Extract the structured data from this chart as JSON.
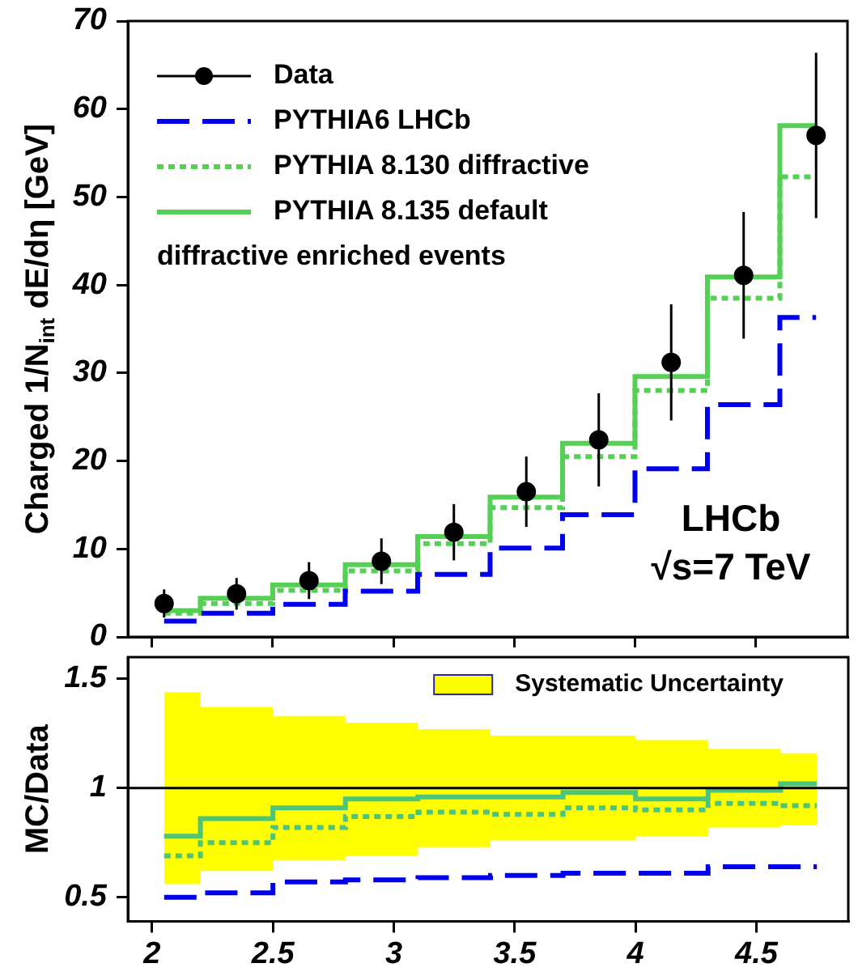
{
  "chart_data": [
    {
      "type": "step",
      "ylabel": "Charged 1/N$_{int}$ dE/dη [GeV]",
      "xlim": [
        1.9,
        4.88
      ],
      "xticks": [
        2,
        2.5,
        3,
        3.5,
        4,
        4.5
      ],
      "ylim": [
        0,
        70
      ],
      "yticks": [
        0,
        10,
        20,
        30,
        40,
        50,
        60,
        70
      ],
      "tick_labels": "y",
      "legend": "top left",
      "grid": false,
      "annotations": [
        "diffractive enriched events",
        "LHCb",
        "√s=7 TeV"
      ],
      "series": [
        {
          "name": "Data",
          "type": "scatter",
          "marker": "circle",
          "color": "#000000",
          "x": [
            2.05,
            2.35,
            2.65,
            2.95,
            3.25,
            3.55,
            3.85,
            4.15,
            4.45,
            4.75
          ],
          "values": [
            3.8,
            4.9,
            6.4,
            8.6,
            11.9,
            16.5,
            22.4,
            31.2,
            41.1,
            57.0
          ],
          "errors": [
            1.6,
            1.8,
            2.1,
            2.6,
            3.2,
            4,
            5.3,
            6.6,
            7.2,
            9.4
          ]
        },
        {
          "name": "PYTHIA6 LHCb",
          "color": "#0000ee",
          "line_style": "dashed",
          "x": [
            2.05,
            2.35,
            2.65,
            2.95,
            3.25,
            3.55,
            3.85,
            4.15,
            4.45,
            4.75
          ],
          "values": [
            1.8,
            2.7,
            3.7,
            5.2,
            7.1,
            10.1,
            13.9,
            19.1,
            26.4,
            36.3
          ]
        },
        {
          "name": "PYTHIA 8.130 diffractive",
          "color": "#55d055",
          "line_style": "dotted",
          "x": [
            2.05,
            2.35,
            2.65,
            2.95,
            3.25,
            3.55,
            3.85,
            4.15,
            4.45,
            4.75
          ],
          "values": [
            2.7,
            3.8,
            5.3,
            7.5,
            10.6,
            14.7,
            20.5,
            28.0,
            38.5,
            52.3
          ]
        },
        {
          "name": "PYTHIA 8.135 default",
          "color": "#55d055",
          "line_style": "solid",
          "x": [
            2.05,
            2.35,
            2.65,
            2.95,
            3.25,
            3.55,
            3.85,
            4.15,
            4.45,
            4.75
          ],
          "values": [
            3.0,
            4.4,
            5.9,
            8.2,
            11.4,
            15.9,
            22.0,
            29.6,
            40.9,
            58.1
          ]
        }
      ]
    },
    {
      "type": "step",
      "ylabel": "MC/Data",
      "xlim": [
        1.9,
        4.88
      ],
      "xticks": [
        2,
        2.5,
        3,
        3.5,
        4,
        4.5
      ],
      "ylim": [
        0.39,
        1.6
      ],
      "yticks": [
        0.5,
        1,
        1.5
      ],
      "legend": "top right",
      "grid": false,
      "ref_lines": [
        {
          "axis": "y",
          "value": 1,
          "color": "#000000"
        }
      ],
      "series": [
        {
          "name": "Systematic Uncertainty",
          "color": "#ffff00",
          "x": [
            2.05,
            2.35,
            2.65,
            2.95,
            3.25,
            3.55,
            3.85,
            4.15,
            4.45,
            4.75
          ],
          "values": [
            null,
            null,
            null,
            null,
            null,
            null,
            null,
            null,
            null,
            null
          ],
          "lower": [
            0.56,
            0.62,
            0.67,
            0.69,
            0.73,
            0.76,
            0.76,
            0.78,
            0.82,
            0.83
          ],
          "upper": [
            1.44,
            1.37,
            1.33,
            1.3,
            1.27,
            1.24,
            1.24,
            1.22,
            1.18,
            1.16
          ]
        },
        {
          "color": "#0000ee",
          "line_style": "dashed",
          "x": [
            2.05,
            2.35,
            2.65,
            2.95,
            3.25,
            3.55,
            3.85,
            4.15,
            4.45,
            4.75
          ],
          "values": [
            0.5,
            0.52,
            0.57,
            0.58,
            0.59,
            0.6,
            0.61,
            0.61,
            0.64,
            0.64
          ]
        },
        {
          "color": "#4cc47a",
          "line_style": "dotted",
          "x": [
            2.05,
            2.35,
            2.65,
            2.95,
            3.25,
            3.55,
            3.85,
            4.15,
            4.45,
            4.75
          ],
          "values": [
            0.69,
            0.75,
            0.82,
            0.87,
            0.89,
            0.88,
            0.91,
            0.9,
            0.93,
            0.92
          ]
        },
        {
          "color": "#4cc47a",
          "line_style": "solid",
          "x": [
            2.05,
            2.35,
            2.65,
            2.95,
            3.25,
            3.55,
            3.85,
            4.15,
            4.45,
            4.75
          ],
          "values": [
            0.78,
            0.86,
            0.91,
            0.95,
            0.96,
            0.96,
            0.98,
            0.95,
            0.99,
            1.02
          ]
        }
      ]
    }
  ]
}
